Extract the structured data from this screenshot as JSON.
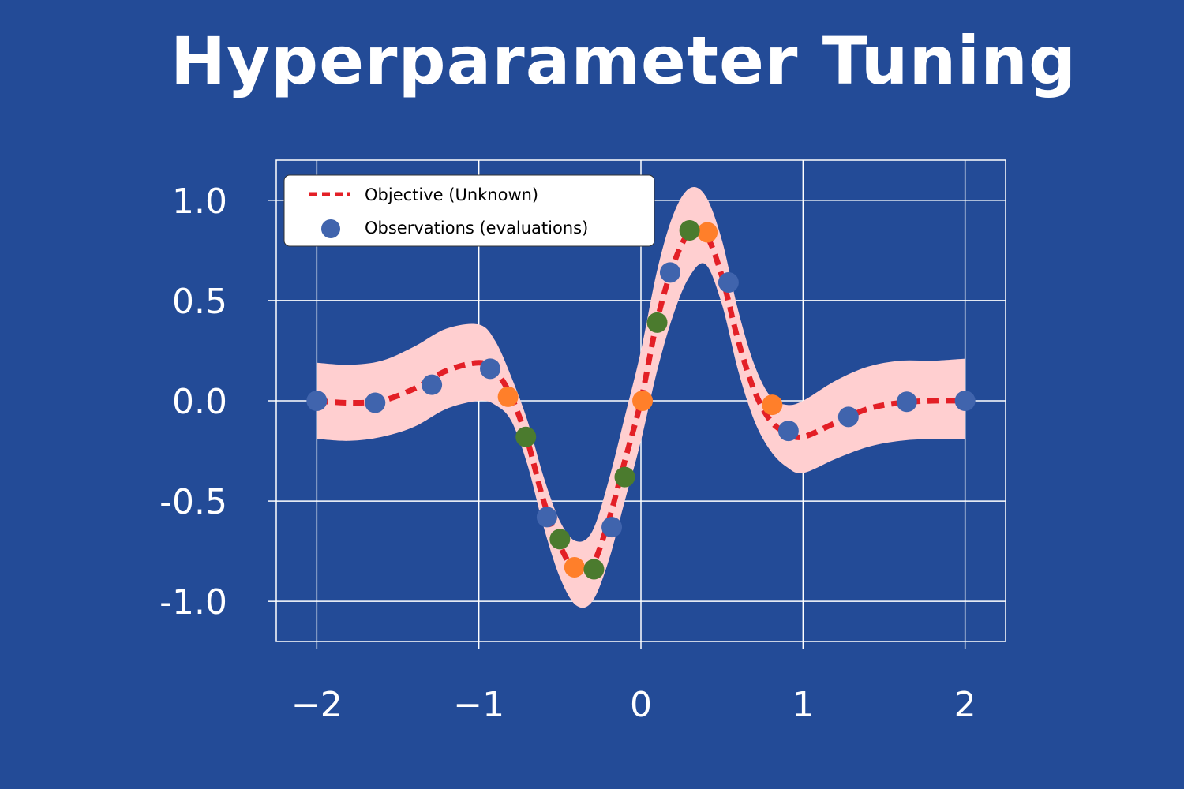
{
  "chart_data": {
    "type": "line",
    "title": "Hyperparameter Tuning",
    "xlabel": "",
    "ylabel": "",
    "xlim": [
      -2.25,
      2.25
    ],
    "ylim": [
      -1.2,
      1.2
    ],
    "xticks": [
      -2,
      -1,
      0,
      1,
      2
    ],
    "yticks": [
      1.0,
      0.5,
      0.0,
      -0.5,
      -1.0
    ],
    "xtick_labels": [
      "−2",
      "−1",
      "0",
      "1",
      "2"
    ],
    "ytick_labels": [
      "1.0",
      "0.5",
      "0.0",
      "-0.5",
      "-1.0"
    ],
    "grid": true,
    "legend_position": "top-left",
    "objective": {
      "name": "Objective (Unknown)",
      "color": "#e31f26",
      "x": [
        -2.0,
        -1.8,
        -1.6,
        -1.4,
        -1.2,
        -1.0,
        -0.9,
        -0.8,
        -0.7,
        -0.6,
        -0.5,
        -0.4,
        -0.3,
        -0.2,
        -0.1,
        0.0,
        0.1,
        0.2,
        0.3,
        0.4,
        0.5,
        0.6,
        0.7,
        0.8,
        0.9,
        1.0,
        1.2,
        1.4,
        1.6,
        1.8,
        2.0
      ],
      "y": [
        0.0,
        -0.01,
        0.0,
        0.06,
        0.15,
        0.19,
        0.15,
        0.02,
        -0.2,
        -0.5,
        -0.72,
        -0.85,
        -0.82,
        -0.6,
        -0.3,
        0.0,
        0.4,
        0.68,
        0.84,
        0.83,
        0.62,
        0.3,
        0.05,
        -0.1,
        -0.16,
        -0.18,
        -0.11,
        -0.04,
        -0.01,
        0.0,
        0.0
      ]
    },
    "band": {
      "color": "#ffcfd0",
      "x": [
        -2.0,
        -1.8,
        -1.6,
        -1.4,
        -1.2,
        -1.0,
        -0.9,
        -0.8,
        -0.7,
        -0.6,
        -0.5,
        -0.4,
        -0.3,
        -0.2,
        -0.1,
        0.0,
        0.1,
        0.2,
        0.3,
        0.4,
        0.5,
        0.6,
        0.7,
        0.8,
        0.9,
        1.0,
        1.2,
        1.4,
        1.6,
        1.8,
        2.0
      ],
      "upper": [
        0.19,
        0.18,
        0.2,
        0.27,
        0.36,
        0.38,
        0.3,
        0.12,
        -0.1,
        -0.38,
        -0.6,
        -0.7,
        -0.65,
        -0.4,
        -0.08,
        0.25,
        0.65,
        0.93,
        1.06,
        1.02,
        0.8,
        0.45,
        0.18,
        0.02,
        -0.02,
        0.0,
        0.1,
        0.17,
        0.2,
        0.2,
        0.21
      ],
      "lower": [
        -0.19,
        -0.2,
        -0.18,
        -0.13,
        -0.04,
        0.0,
        -0.02,
        -0.1,
        -0.32,
        -0.63,
        -0.88,
        -1.02,
        -1.0,
        -0.8,
        -0.5,
        -0.2,
        0.15,
        0.43,
        0.62,
        0.68,
        0.48,
        0.15,
        -0.1,
        -0.25,
        -0.33,
        -0.36,
        -0.29,
        -0.23,
        -0.2,
        -0.19,
        -0.19
      ]
    },
    "observation_series": [
      {
        "name": "Observations (evaluations)",
        "color": "#4064ad",
        "points": [
          [
            -2.0,
            0.0
          ],
          [
            -1.64,
            -0.01
          ],
          [
            -1.29,
            0.08
          ],
          [
            -0.93,
            0.16
          ],
          [
            -0.58,
            -0.58
          ],
          [
            -0.18,
            -0.63
          ],
          [
            0.18,
            0.64
          ],
          [
            0.54,
            0.59
          ],
          [
            0.91,
            -0.15
          ],
          [
            1.28,
            -0.08
          ],
          [
            1.64,
            -0.005
          ],
          [
            2.0,
            0.0
          ]
        ]
      },
      {
        "color": "#ff7f2a",
        "points": [
          [
            -0.82,
            0.02
          ],
          [
            -0.41,
            -0.83
          ],
          [
            0.01,
            0.0
          ],
          [
            0.41,
            0.84
          ],
          [
            0.81,
            -0.02
          ]
        ]
      },
      {
        "color": "#4b7b2e",
        "points": [
          [
            -0.71,
            -0.18
          ],
          [
            -0.5,
            -0.69
          ],
          [
            -0.29,
            -0.84
          ],
          [
            -0.1,
            -0.38
          ],
          [
            0.1,
            0.39
          ],
          [
            0.3,
            0.85
          ]
        ]
      }
    ],
    "legend": {
      "line_label": "Objective (Unknown)",
      "marker_label": "Observations (evaluations)"
    }
  }
}
